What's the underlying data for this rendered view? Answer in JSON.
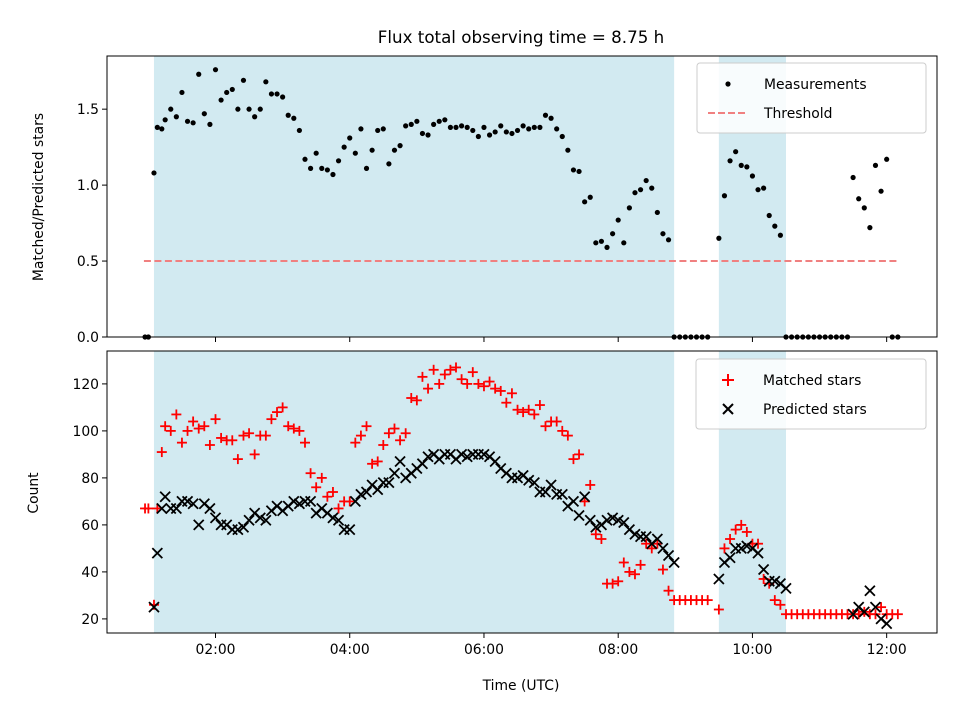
{
  "chart_data": [
    {
      "type": "scatter",
      "title": "Flux total observing time = 8.75 h",
      "xlabel": "",
      "ylabel": "Matched/Predicted stars",
      "xlim": [
        "00:23",
        "12:45"
      ],
      "ylim": [
        0,
        1.85
      ],
      "yticks": [
        0.0,
        0.5,
        1.0,
        1.5
      ],
      "ytick_labels": [
        "0.0",
        "0.5",
        "1.0",
        "1.5"
      ],
      "xticks": [
        "02:00",
        "04:00",
        "06:00",
        "08:00",
        "10:00",
        "12:00"
      ],
      "xtick_labels_shown": false,
      "shaded_spans": [
        [
          "01:05",
          "08:50"
        ],
        [
          "09:30",
          "10:30"
        ]
      ],
      "shade_color": "#add8e6",
      "legend_position": "top-right",
      "legend_entries": [
        "Measurements",
        "Threshold"
      ],
      "threshold": {
        "name": "Threshold",
        "value": 0.5,
        "x_range": [
          "00:56",
          "12:09"
        ],
        "color": "#f08080",
        "style": "dashed"
      },
      "series": [
        {
          "name": "Measurements",
          "marker": "dot",
          "color": "#000000",
          "x": [
            "00:57",
            "01:00",
            "01:05",
            "01:08",
            "01:12",
            "01:15",
            "01:20",
            "01:25",
            "01:30",
            "01:35",
            "01:40",
            "01:45",
            "01:50",
            "01:55",
            "02:00",
            "02:05",
            "02:10",
            "02:15",
            "02:20",
            "02:25",
            "02:30",
            "02:35",
            "02:40",
            "02:45",
            "02:50",
            "02:55",
            "03:00",
            "03:05",
            "03:10",
            "03:15",
            "03:20",
            "03:25",
            "03:30",
            "03:35",
            "03:40",
            "03:45",
            "03:50",
            "03:55",
            "04:00",
            "04:05",
            "04:10",
            "04:15",
            "04:20",
            "04:25",
            "04:30",
            "04:35",
            "04:40",
            "04:45",
            "04:50",
            "04:55",
            "05:00",
            "05:05",
            "05:10",
            "05:15",
            "05:20",
            "05:25",
            "05:30",
            "05:35",
            "05:40",
            "05:45",
            "05:50",
            "05:55",
            "06:00",
            "06:05",
            "06:10",
            "06:15",
            "06:20",
            "06:25",
            "06:30",
            "06:35",
            "06:40",
            "06:45",
            "06:50",
            "06:55",
            "07:00",
            "07:05",
            "07:10",
            "07:15",
            "07:20",
            "07:25",
            "07:30",
            "07:35",
            "07:40",
            "07:45",
            "07:50",
            "07:55",
            "08:00",
            "08:05",
            "08:10",
            "08:15",
            "08:20",
            "08:25",
            "08:30",
            "08:35",
            "08:40",
            "08:45",
            "08:50",
            "08:55",
            "09:00",
            "09:05",
            "09:10",
            "09:15",
            "09:20",
            "09:30",
            "09:35",
            "09:40",
            "09:45",
            "09:50",
            "09:55",
            "10:00",
            "10:05",
            "10:10",
            "10:15",
            "10:20",
            "10:25",
            "10:30",
            "10:35",
            "10:40",
            "10:45",
            "10:50",
            "10:55",
            "11:00",
            "11:05",
            "11:10",
            "11:15",
            "11:20",
            "11:25",
            "11:30",
            "11:35",
            "11:40",
            "11:45",
            "11:50",
            "11:55",
            "12:00",
            "12:05",
            "12:10"
          ],
          "y": [
            0,
            0,
            1.08,
            1.38,
            1.37,
            1.43,
            1.5,
            1.45,
            1.61,
            1.42,
            1.41,
            1.73,
            1.47,
            1.4,
            1.76,
            1.56,
            1.61,
            1.63,
            1.5,
            1.69,
            1.5,
            1.45,
            1.5,
            1.68,
            1.6,
            1.6,
            1.58,
            1.46,
            1.44,
            1.36,
            1.17,
            1.11,
            1.21,
            1.11,
            1.1,
            1.07,
            1.16,
            1.25,
            1.31,
            1.21,
            1.37,
            1.11,
            1.23,
            1.36,
            1.37,
            1.14,
            1.23,
            1.26,
            1.39,
            1.4,
            1.42,
            1.34,
            1.33,
            1.4,
            1.42,
            1.43,
            1.38,
            1.38,
            1.39,
            1.38,
            1.36,
            1.32,
            1.38,
            1.33,
            1.35,
            1.39,
            1.35,
            1.34,
            1.36,
            1.39,
            1.37,
            1.38,
            1.38,
            1.46,
            1.44,
            1.37,
            1.32,
            1.23,
            1.1,
            1.09,
            0.89,
            0.92,
            0.62,
            0.63,
            0.59,
            0.68,
            0.77,
            0.62,
            0.85,
            0.95,
            0.97,
            1.03,
            0.98,
            0.82,
            0.68,
            0.64,
            0,
            0,
            0,
            0,
            0,
            0,
            0,
            0.65,
            0.93,
            1.16,
            1.22,
            1.13,
            1.12,
            1.06,
            0.97,
            0.98,
            0.8,
            0.73,
            0.67,
            0,
            0,
            0,
            0,
            0,
            0,
            0,
            0,
            0,
            0,
            0,
            0,
            1.05,
            0.91,
            0.85,
            0.72,
            1.13,
            0.96,
            1.17,
            0,
            0
          ]
        }
      ]
    },
    {
      "type": "scatter",
      "title": "",
      "xlabel": "Time (UTC)",
      "ylabel": "Count",
      "xlim": [
        "00:23",
        "12:45"
      ],
      "ylim": [
        14,
        134
      ],
      "yticks": [
        20,
        40,
        60,
        80,
        100,
        120
      ],
      "ytick_labels": [
        "20",
        "40",
        "60",
        "80",
        "100",
        "120"
      ],
      "xticks": [
        "02:00",
        "04:00",
        "06:00",
        "08:00",
        "10:00",
        "12:00"
      ],
      "xtick_labels": [
        "02:00",
        "04:00",
        "06:00",
        "08:00",
        "10:00",
        "12:00"
      ],
      "shaded_spans": [
        [
          "01:05",
          "08:50"
        ],
        [
          "09:30",
          "10:30"
        ]
      ],
      "shade_color": "#add8e6",
      "legend_position": "top-right",
      "legend_entries": [
        "Matched stars",
        "Predicted stars"
      ],
      "series": [
        {
          "name": "Matched stars",
          "marker": "plus",
          "color": "#ff0000",
          "x": [
            "00:57",
            "01:00",
            "01:05",
            "01:08",
            "01:12",
            "01:15",
            "01:20",
            "01:25",
            "01:30",
            "01:35",
            "01:40",
            "01:45",
            "01:50",
            "01:55",
            "02:00",
            "02:05",
            "02:10",
            "02:15",
            "02:20",
            "02:25",
            "02:30",
            "02:35",
            "02:40",
            "02:45",
            "02:50",
            "02:55",
            "03:00",
            "03:05",
            "03:10",
            "03:15",
            "03:20",
            "03:25",
            "03:30",
            "03:35",
            "03:40",
            "03:45",
            "03:50",
            "03:55",
            "04:00",
            "04:05",
            "04:10",
            "04:15",
            "04:20",
            "04:25",
            "04:30",
            "04:35",
            "04:40",
            "04:45",
            "04:50",
            "04:55",
            "05:00",
            "05:05",
            "05:10",
            "05:15",
            "05:20",
            "05:25",
            "05:30",
            "05:35",
            "05:40",
            "05:45",
            "05:50",
            "05:55",
            "06:00",
            "06:05",
            "06:10",
            "06:15",
            "06:20",
            "06:25",
            "06:30",
            "06:35",
            "06:40",
            "06:45",
            "06:50",
            "06:55",
            "07:00",
            "07:05",
            "07:10",
            "07:15",
            "07:20",
            "07:25",
            "07:30",
            "07:35",
            "07:40",
            "07:45",
            "07:50",
            "07:55",
            "08:00",
            "08:05",
            "08:10",
            "08:15",
            "08:20",
            "08:25",
            "08:30",
            "08:35",
            "08:40",
            "08:45",
            "08:50",
            "08:55",
            "09:00",
            "09:05",
            "09:10",
            "09:15",
            "09:20",
            "09:30",
            "09:35",
            "09:40",
            "09:45",
            "09:50",
            "09:55",
            "10:00",
            "10:05",
            "10:10",
            "10:15",
            "10:20",
            "10:25",
            "10:30",
            "10:35",
            "10:40",
            "10:45",
            "10:50",
            "10:55",
            "11:00",
            "11:05",
            "11:10",
            "11:15",
            "11:20",
            "11:25",
            "11:30",
            "11:35",
            "11:40",
            "11:45",
            "11:50",
            "11:55",
            "12:00",
            "12:05",
            "12:10"
          ],
          "y": [
            67,
            67,
            26,
            67,
            91,
            102,
            100,
            107,
            95,
            100,
            104,
            101,
            102,
            94,
            105,
            97,
            96,
            96,
            88,
            98,
            99,
            90,
            98,
            98,
            105,
            108,
            110,
            102,
            101,
            100,
            95,
            82,
            76,
            80,
            72,
            74,
            67,
            70,
            70,
            95,
            98,
            102,
            86,
            87,
            94,
            99,
            101,
            96,
            99,
            114,
            113,
            123,
            118,
            126,
            120,
            124,
            126,
            127,
            122,
            120,
            125,
            120,
            119,
            121,
            118,
            117,
            112,
            116,
            109,
            108,
            109,
            107,
            111,
            102,
            104,
            104,
            100,
            98,
            88,
            90,
            70,
            77,
            56,
            54,
            35,
            35,
            36,
            44,
            40,
            39,
            43,
            52,
            50,
            52,
            41,
            32,
            28,
            28,
            28,
            28,
            28,
            28,
            28,
            24,
            50,
            54,
            58,
            60,
            57,
            52,
            52,
            37,
            35,
            28,
            26,
            22,
            22,
            22,
            22,
            22,
            22,
            22,
            22,
            22,
            22,
            22,
            22,
            22,
            22,
            23,
            22,
            22,
            25,
            22,
            22,
            22
          ]
        },
        {
          "name": "Predicted stars",
          "marker": "x",
          "color": "#000000",
          "x": [
            "01:05",
            "01:08",
            "01:12",
            "01:15",
            "01:20",
            "01:25",
            "01:30",
            "01:35",
            "01:40",
            "01:45",
            "01:50",
            "01:55",
            "02:00",
            "02:05",
            "02:10",
            "02:15",
            "02:20",
            "02:25",
            "02:30",
            "02:35",
            "02:40",
            "02:45",
            "02:50",
            "02:55",
            "03:00",
            "03:05",
            "03:10",
            "03:15",
            "03:20",
            "03:25",
            "03:30",
            "03:35",
            "03:40",
            "03:45",
            "03:50",
            "03:55",
            "04:00",
            "04:05",
            "04:10",
            "04:15",
            "04:20",
            "04:25",
            "04:30",
            "04:35",
            "04:40",
            "04:45",
            "04:50",
            "04:55",
            "05:00",
            "05:05",
            "05:10",
            "05:15",
            "05:20",
            "05:25",
            "05:30",
            "05:35",
            "05:40",
            "05:45",
            "05:50",
            "05:55",
            "06:00",
            "06:05",
            "06:10",
            "06:15",
            "06:20",
            "06:25",
            "06:30",
            "06:35",
            "06:40",
            "06:45",
            "06:50",
            "06:55",
            "07:00",
            "07:05",
            "07:10",
            "07:15",
            "07:20",
            "07:25",
            "07:30",
            "07:35",
            "07:40",
            "07:45",
            "07:50",
            "07:55",
            "08:00",
            "08:05",
            "08:10",
            "08:15",
            "08:20",
            "08:25",
            "08:30",
            "08:35",
            "08:40",
            "08:45",
            "08:50",
            "09:30",
            "09:35",
            "09:40",
            "09:45",
            "09:50",
            "09:55",
            "10:00",
            "10:05",
            "10:10",
            "10:15",
            "10:20",
            "10:25",
            "10:30",
            "11:30",
            "11:35",
            "11:40",
            "11:45",
            "11:50",
            "11:55",
            "12:00"
          ],
          "y": [
            25,
            48,
            67,
            72,
            67,
            67,
            70,
            70,
            69,
            60,
            69,
            67,
            63,
            60,
            60,
            58,
            58,
            59,
            62,
            65,
            63,
            62,
            66,
            68,
            66,
            68,
            70,
            69,
            70,
            70,
            65,
            67,
            65,
            63,
            62,
            58,
            58,
            70,
            73,
            74,
            77,
            75,
            78,
            78,
            82,
            87,
            80,
            82,
            84,
            86,
            89,
            90,
            88,
            90,
            90,
            88,
            90,
            89,
            90,
            90,
            90,
            89,
            87,
            84,
            82,
            80,
            80,
            81,
            79,
            78,
            74,
            74,
            77,
            73,
            73,
            68,
            70,
            64,
            72,
            62,
            59,
            60,
            62,
            63,
            62,
            61,
            58,
            56,
            55,
            55,
            52,
            54,
            50,
            47,
            44,
            37,
            44,
            46,
            50,
            50,
            51,
            50,
            48,
            41,
            36,
            36,
            35,
            33,
            22,
            25,
            23,
            32,
            25,
            20,
            18
          ]
        }
      ]
    }
  ]
}
